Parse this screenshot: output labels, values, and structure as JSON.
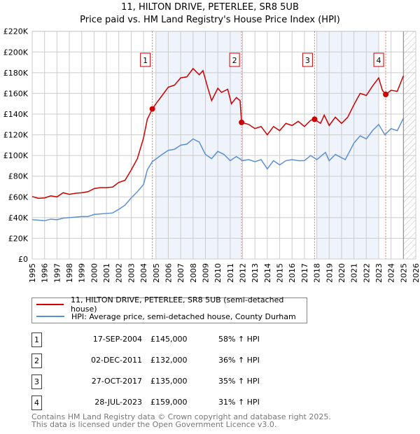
{
  "chart_data": {
    "type": "line",
    "title": "11, HILTON DRIVE, PETERLEE, SR8 5UB",
    "subtitle": "Price paid vs. HM Land Registry's House Price Index (HPI)",
    "xlim": [
      1995,
      2026
    ],
    "ylim": [
      0,
      220000
    ],
    "x_ticks": [
      "1995",
      "1996",
      "1997",
      "1998",
      "1999",
      "2000",
      "2001",
      "2002",
      "2003",
      "2004",
      "2005",
      "2006",
      "2007",
      "2008",
      "2009",
      "2010",
      "2011",
      "2012",
      "2013",
      "2014",
      "2015",
      "2016",
      "2017",
      "2018",
      "2019",
      "2020",
      "2021",
      "2022",
      "2023",
      "2024",
      "2025",
      "2026"
    ],
    "y_ticks": [
      {
        "v": 0,
        "label": "£0"
      },
      {
        "v": 20000,
        "label": "£20K"
      },
      {
        "v": 40000,
        "label": "£40K"
      },
      {
        "v": 60000,
        "label": "£60K"
      },
      {
        "v": 80000,
        "label": "£80K"
      },
      {
        "v": 100000,
        "label": "£100K"
      },
      {
        "v": 120000,
        "label": "£120K"
      },
      {
        "v": 140000,
        "label": "£140K"
      },
      {
        "v": 160000,
        "label": "£160K"
      },
      {
        "v": 180000,
        "label": "£180K"
      },
      {
        "v": 200000,
        "label": "£200K"
      },
      {
        "v": 220000,
        "label": "£220K"
      }
    ],
    "grid": true,
    "shaded_periods": [
      [
        2005,
        2011.92
      ],
      [
        2018,
        2023.0
      ]
    ],
    "forecast_hatch_from": 2025,
    "series": [
      {
        "name": "11, HILTON DRIVE, PETERLEE, SR8 5UB (semi-detached house)",
        "color": "#cc0000",
        "points": [
          [
            1995,
            60400
          ],
          [
            1995.5,
            58600
          ],
          [
            1996,
            59000
          ],
          [
            1996.5,
            61000
          ],
          [
            1997,
            60000
          ],
          [
            1997.5,
            64000
          ],
          [
            1998,
            62500
          ],
          [
            1998.5,
            63500
          ],
          [
            1999,
            64000
          ],
          [
            1999.5,
            65000
          ],
          [
            2000,
            68000
          ],
          [
            2000.5,
            69000
          ],
          [
            2001,
            69000
          ],
          [
            2001.5,
            69500
          ],
          [
            2002,
            74000
          ],
          [
            2002.5,
            76000
          ],
          [
            2003,
            86000
          ],
          [
            2003.5,
            97000
          ],
          [
            2004,
            117000
          ],
          [
            2004.3,
            135000
          ],
          [
            2004.71,
            145000
          ],
          [
            2005,
            150000
          ],
          [
            2005.5,
            158000
          ],
          [
            2006,
            166000
          ],
          [
            2006.5,
            168000
          ],
          [
            2007,
            175000
          ],
          [
            2007.5,
            176000
          ],
          [
            2008,
            184000
          ],
          [
            2008.5,
            178000
          ],
          [
            2008.8,
            182000
          ],
          [
            2009.2,
            165000
          ],
          [
            2009.5,
            153000
          ],
          [
            2010,
            165000
          ],
          [
            2010.3,
            161000
          ],
          [
            2010.8,
            164000
          ],
          [
            2011.1,
            150000
          ],
          [
            2011.5,
            156000
          ],
          [
            2011.8,
            153000
          ],
          [
            2011.92,
            132000
          ],
          [
            2012.5,
            130000
          ],
          [
            2013,
            126000
          ],
          [
            2013.5,
            128000
          ],
          [
            2014,
            120000
          ],
          [
            2014.5,
            128000
          ],
          [
            2015,
            124000
          ],
          [
            2015.5,
            131000
          ],
          [
            2016,
            129000
          ],
          [
            2016.5,
            133000
          ],
          [
            2017,
            128000
          ],
          [
            2017.5,
            134000
          ],
          [
            2017.82,
            135000
          ],
          [
            2018.3,
            131000
          ],
          [
            2018.6,
            139000
          ],
          [
            2019,
            129000
          ],
          [
            2019.5,
            137000
          ],
          [
            2020,
            131000
          ],
          [
            2020.5,
            137000
          ],
          [
            2021,
            149000
          ],
          [
            2021.5,
            160000
          ],
          [
            2022,
            158000
          ],
          [
            2022.5,
            167000
          ],
          [
            2023,
            175000
          ],
          [
            2023.3,
            163000
          ],
          [
            2023.57,
            159000
          ],
          [
            2024,
            163000
          ],
          [
            2024.5,
            162000
          ],
          [
            2025,
            177000
          ]
        ]
      },
      {
        "name": "HPI: Average price, semi-detached house, County Durham",
        "color": "#5b8fd4",
        "points": [
          [
            1995,
            38000
          ],
          [
            1995.5,
            37500
          ],
          [
            1996,
            37000
          ],
          [
            1996.5,
            38500
          ],
          [
            1997,
            38000
          ],
          [
            1997.5,
            39500
          ],
          [
            1998,
            40000
          ],
          [
            1998.5,
            40500
          ],
          [
            1999,
            41000
          ],
          [
            1999.5,
            41000
          ],
          [
            2000,
            43000
          ],
          [
            2000.5,
            43500
          ],
          [
            2001,
            44000
          ],
          [
            2001.5,
            44500
          ],
          [
            2002,
            48000
          ],
          [
            2002.5,
            52000
          ],
          [
            2003,
            59000
          ],
          [
            2003.5,
            65000
          ],
          [
            2004,
            72000
          ],
          [
            2004.3,
            86000
          ],
          [
            2004.7,
            94000
          ],
          [
            2005.5,
            101000
          ],
          [
            2006,
            105000
          ],
          [
            2006.5,
            106000
          ],
          [
            2007,
            110000
          ],
          [
            2007.5,
            111000
          ],
          [
            2008,
            116000
          ],
          [
            2008.5,
            113000
          ],
          [
            2009,
            101000
          ],
          [
            2009.5,
            97000
          ],
          [
            2010,
            104000
          ],
          [
            2010.5,
            101000
          ],
          [
            2011,
            95000
          ],
          [
            2011.5,
            99000
          ],
          [
            2012,
            95000
          ],
          [
            2012.5,
            96000
          ],
          [
            2013,
            94000
          ],
          [
            2013.5,
            96000
          ],
          [
            2014,
            87000
          ],
          [
            2014.5,
            95000
          ],
          [
            2015,
            91000
          ],
          [
            2015.5,
            95000
          ],
          [
            2016,
            96000
          ],
          [
            2016.5,
            95000
          ],
          [
            2017,
            95000
          ],
          [
            2017.5,
            100000
          ],
          [
            2018,
            96000
          ],
          [
            2018.7,
            103000
          ],
          [
            2019,
            95000
          ],
          [
            2019.5,
            101000
          ],
          [
            2020.3,
            96000
          ],
          [
            2021,
            112000
          ],
          [
            2021.5,
            119000
          ],
          [
            2022,
            116000
          ],
          [
            2022.5,
            124000
          ],
          [
            2023,
            130000
          ],
          [
            2023.5,
            120000
          ],
          [
            2024,
            126000
          ],
          [
            2024.5,
            124000
          ],
          [
            2025,
            136000
          ]
        ]
      }
    ],
    "sales": [
      {
        "label": "1",
        "x": 2004.71,
        "price": 145000,
        "date": "17-SEP-2004",
        "price_label": "£145,000",
        "hpi": "58% ↑ HPI"
      },
      {
        "label": "2",
        "x": 2011.92,
        "price": 132000,
        "date": "02-DEC-2011",
        "price_label": "£132,000",
        "hpi": "36% ↑ HPI"
      },
      {
        "label": "3",
        "x": 2017.82,
        "price": 135000,
        "date": "27-OCT-2017",
        "price_label": "£135,000",
        "hpi": "35% ↑ HPI"
      },
      {
        "label": "4",
        "x": 2023.57,
        "price": 159000,
        "date": "28-JUL-2023",
        "price_label": "£159,000",
        "hpi": "31% ↑ HPI"
      }
    ]
  },
  "legend": {
    "red": "11, HILTON DRIVE, PETERLEE, SR8 5UB (semi-detached house)",
    "blue": "HPI: Average price, semi-detached house, County Durham"
  },
  "footer": {
    "line1": "Contains HM Land Registry data © Crown copyright and database right 2025.",
    "line2": "This data is licensed under the Open Government Licence v3.0."
  }
}
